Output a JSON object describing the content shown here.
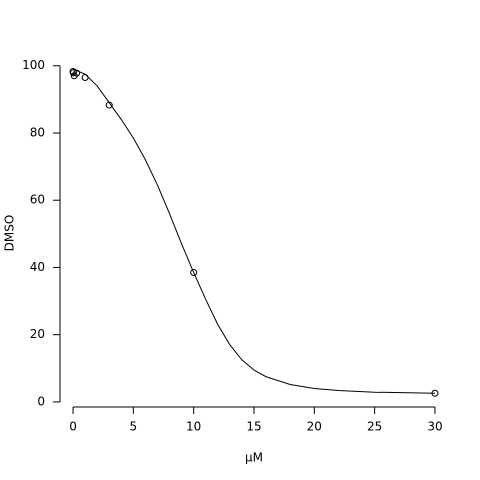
{
  "chart_data": {
    "type": "scatter",
    "x_label": "μM",
    "y_label": "DMSO",
    "series": [
      {
        "type": "scatter",
        "color": "#000000",
        "x": [
          0,
          0.03,
          0.1,
          0.3,
          1,
          3,
          10,
          30
        ],
        "values": [
          98.3,
          97.9,
          97.0,
          97.8,
          96.5,
          88.3,
          38.5,
          2.6
        ]
      },
      {
        "type": "line",
        "color": "#000000",
        "x": [
          0,
          1,
          2,
          3,
          4,
          5,
          6,
          7,
          8,
          9,
          10,
          11,
          12,
          13,
          14,
          15,
          16,
          18,
          20,
          22,
          25,
          30
        ],
        "values": [
          99,
          97.5,
          94,
          89,
          84,
          78.5,
          72,
          64.5,
          56,
          47,
          38.5,
          30.5,
          23,
          17,
          12.5,
          9.5,
          7.5,
          5.2,
          4,
          3.4,
          2.9,
          2.6
        ]
      }
    ],
    "xlim": [
      -1.08,
      31.08
    ],
    "ylim": [
      -1.5,
      102
    ],
    "xticks": [
      0,
      5,
      10,
      15,
      20,
      25,
      30
    ],
    "yticks": [
      0,
      20,
      40,
      60,
      80,
      100
    ],
    "grid": false
  }
}
